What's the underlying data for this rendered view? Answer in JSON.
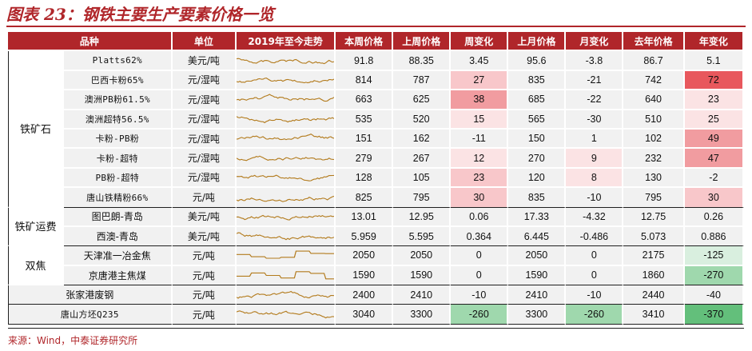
{
  "title": "图表 23：钢铁主要生产要素价格一览",
  "source": "来源：Wind，中泰证券研究所",
  "columns": [
    "品种",
    "单位",
    "2019年至今走势",
    "本周价格",
    "上周价格",
    "周变化",
    "上月价格",
    "月变化",
    "去年价格",
    "年变化"
  ],
  "colors": {
    "header_bg": "#b0262a",
    "cell_bg": "#f1f1f1",
    "trend_line": "#b37b1d",
    "up_scale": [
      "#fbe3e4",
      "#f8c7ca",
      "#f19ca0",
      "#e8585d"
    ],
    "down_scale": [
      "#d9efdf",
      "#9fd8ad",
      "#63bf7b"
    ]
  },
  "groups": [
    {
      "name": "铁矿石",
      "rows": [
        {
          "name": "Platts62%",
          "unit": "美元/吨",
          "this_week": "91.8",
          "last_week": "88.35",
          "week_chg": "3.45",
          "last_month": "95.6",
          "month_chg": "-3.8",
          "last_year": "86.7",
          "year_chg": "5.1",
          "heat": {
            "week": 0,
            "month": 0,
            "year": 0
          }
        },
        {
          "name": "巴西卡粉65%",
          "unit": "元/湿吨",
          "this_week": "814",
          "last_week": "787",
          "week_chg": "27",
          "last_month": "835",
          "month_chg": "-21",
          "last_year": "742",
          "year_chg": "72",
          "heat": {
            "week": 2,
            "month": 0,
            "year": 4
          }
        },
        {
          "name": "澳洲PB粉61.5%",
          "unit": "元/湿吨",
          "this_week": "663",
          "last_week": "625",
          "week_chg": "38",
          "last_month": "685",
          "month_chg": "-22",
          "last_year": "640",
          "year_chg": "23",
          "heat": {
            "week": 3,
            "month": 0,
            "year": 1
          }
        },
        {
          "name": "澳洲超特56.5%",
          "unit": "元/湿吨",
          "this_week": "535",
          "last_week": "520",
          "week_chg": "15",
          "last_month": "565",
          "month_chg": "-30",
          "last_year": "510",
          "year_chg": "25",
          "heat": {
            "week": 1,
            "month": 0,
            "year": 1
          }
        },
        {
          "name": "卡粉-PB粉",
          "unit": "元/湿吨",
          "this_week": "151",
          "last_week": "162",
          "week_chg": "-11",
          "last_month": "150",
          "month_chg": "1",
          "last_year": "102",
          "year_chg": "49",
          "heat": {
            "week": 0,
            "month": 0,
            "year": 3
          }
        },
        {
          "name": "卡粉-超特",
          "unit": "元/湿吨",
          "this_week": "279",
          "last_week": "267",
          "week_chg": "12",
          "last_month": "270",
          "month_chg": "9",
          "last_year": "232",
          "year_chg": "47",
          "heat": {
            "week": 1,
            "month": 1,
            "year": 3
          }
        },
        {
          "name": "PB粉-超特",
          "unit": "元/湿吨",
          "this_week": "128",
          "last_week": "105",
          "week_chg": "23",
          "last_month": "120",
          "month_chg": "8",
          "last_year": "130",
          "year_chg": "-2",
          "heat": {
            "week": 2,
            "month": 1,
            "year": 0
          }
        },
        {
          "name": "唐山铁精粉66%",
          "unit": "元/吨",
          "this_week": "825",
          "last_week": "795",
          "week_chg": "30",
          "last_month": "835",
          "month_chg": "-10",
          "last_year": "795",
          "year_chg": "30",
          "heat": {
            "week": 2,
            "month": 0,
            "year": 2
          }
        }
      ]
    },
    {
      "name": "铁矿运费",
      "rows": [
        {
          "name": "图巴朗-青岛",
          "unit": "美元/吨",
          "this_week": "13.01",
          "last_week": "12.95",
          "week_chg": "0.06",
          "last_month": "17.33",
          "month_chg": "-4.32",
          "last_year": "12.75",
          "year_chg": "0.26",
          "heat": {
            "week": 0,
            "month": 0,
            "year": 0
          }
        },
        {
          "name": "西澳-青岛",
          "unit": "美元/吨",
          "this_week": "5.959",
          "last_week": "5.595",
          "week_chg": "0.364",
          "last_month": "6.445",
          "month_chg": "-0.486",
          "last_year": "5.073",
          "year_chg": "0.886",
          "heat": {
            "week": 0,
            "month": 0,
            "year": 0
          }
        }
      ]
    },
    {
      "name": "双焦",
      "rows": [
        {
          "name": "天津准一冶金焦",
          "unit": "元/吨",
          "this_week": "2050",
          "last_week": "2050",
          "week_chg": "0",
          "last_month": "2050",
          "month_chg": "0",
          "last_year": "2175",
          "year_chg": "-125",
          "heat": {
            "week": 0,
            "month": 0,
            "year": -1
          }
        },
        {
          "name": "京唐港主焦煤",
          "unit": "元/吨",
          "this_week": "1590",
          "last_week": "1590",
          "week_chg": "0",
          "last_month": "1590",
          "month_chg": "0",
          "last_year": "1860",
          "year_chg": "-270",
          "heat": {
            "week": 0,
            "month": 0,
            "year": -2
          }
        }
      ]
    },
    {
      "name": "",
      "rows": [
        {
          "name": "张家港废钢",
          "unit": "元/吨",
          "this_week": "2400",
          "last_week": "2410",
          "week_chg": "-10",
          "last_month": "2410",
          "month_chg": "-10",
          "last_year": "2440",
          "year_chg": "-40",
          "heat": {
            "week": 0,
            "month": 0,
            "year": 0
          }
        }
      ]
    },
    {
      "name": "",
      "rows": [
        {
          "name": "唐山方坯Q235",
          "unit": "元/吨",
          "this_week": "3040",
          "last_week": "3300",
          "week_chg": "-260",
          "last_month": "3300",
          "month_chg": "-260",
          "last_year": "3410",
          "year_chg": "-370",
          "heat": {
            "week": -2,
            "month": -2,
            "year": -3
          }
        }
      ]
    }
  ]
}
